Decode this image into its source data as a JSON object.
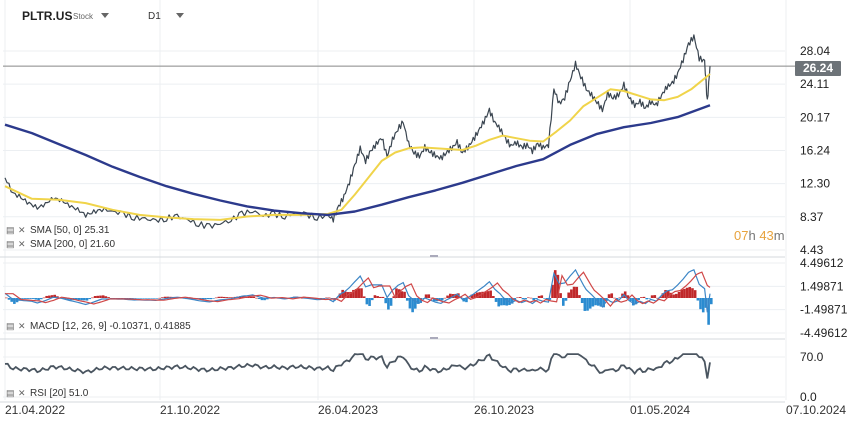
{
  "header": {
    "symbol": "PLTR.US",
    "symbol_type": "Stock",
    "timeframe": "D1"
  },
  "price_tag": "26.24",
  "countdown": {
    "hours": "07",
    "h_unit": "h",
    "minutes": "43",
    "m_unit": "m"
  },
  "indicators": {
    "sma50": "SMA [50, 0] 25.31",
    "sma200": "SMA [200, 0] 21.60",
    "macd": "MACD [12, 26, 9] -0.10371, 0.41885",
    "rsi": "RSI [20] 51.0"
  },
  "colors": {
    "price": "#3a4550",
    "sma50": "#f0d44a",
    "sma200": "#2c3a8c",
    "macd_pos": "#c0282a",
    "macd_neg": "#2a8bd0",
    "macd_line": "#3d86c6",
    "signal_line": "#d04848",
    "rsi": "#4a5560",
    "grid": "#eceff2",
    "price_tag_bg": "#6d7378",
    "countdown": "#e8a33d"
  },
  "chart_data": {
    "type": "line",
    "x_labels": [
      "21.04.2022",
      "21.10.2022",
      "26.04.2023",
      "26.10.2023",
      "01.05.2024",
      "07.10.2024"
    ],
    "price_axis_ticks": [
      "28.04",
      "24.11",
      "20.17",
      "16.24",
      "12.30",
      "8.37",
      "4.43"
    ],
    "price_ylim": [
      4.43,
      30.0
    ],
    "current_price": 26.24,
    "series": [
      {
        "name": "PLTR.US",
        "points": [
          [
            0,
            13.0
          ],
          [
            3,
            11.2
          ],
          [
            6,
            10.6
          ],
          [
            9,
            10.0
          ],
          [
            12,
            9.4
          ],
          [
            15,
            9.9
          ],
          [
            18,
            10.6
          ],
          [
            21,
            10.3
          ],
          [
            24,
            9.7
          ],
          [
            27,
            9.2
          ],
          [
            30,
            8.6
          ],
          [
            33,
            8.9
          ],
          [
            36,
            9.3
          ],
          [
            40,
            9.0
          ],
          [
            44,
            8.7
          ],
          [
            48,
            8.3
          ],
          [
            52,
            8.1
          ],
          [
            56,
            7.9
          ],
          [
            60,
            8.2
          ],
          [
            64,
            8.4
          ],
          [
            68,
            8.0
          ],
          [
            72,
            7.5
          ],
          [
            76,
            7.2
          ],
          [
            80,
            7.6
          ],
          [
            84,
            8.0
          ],
          [
            88,
            8.7
          ],
          [
            92,
            9.1
          ],
          [
            96,
            8.5
          ],
          [
            100,
            8.7
          ],
          [
            104,
            8.4
          ],
          [
            108,
            8.8
          ],
          [
            112,
            8.6
          ],
          [
            116,
            8.3
          ],
          [
            120,
            8.5
          ],
          [
            122,
            8.1
          ],
          [
            124,
            9.6
          ],
          [
            126,
            10.8
          ],
          [
            128,
            12.5
          ],
          [
            130,
            14.5
          ],
          [
            132,
            16.5
          ],
          [
            134,
            15.0
          ],
          [
            136,
            16.2
          ],
          [
            138,
            17.0
          ],
          [
            140,
            17.8
          ],
          [
            142,
            15.5
          ],
          [
            144,
            17.5
          ],
          [
            146,
            18.8
          ],
          [
            148,
            19.6
          ],
          [
            150,
            17.0
          ],
          [
            152,
            16.0
          ],
          [
            154,
            15.5
          ],
          [
            156,
            16.6
          ],
          [
            158,
            16.1
          ],
          [
            160,
            15.6
          ],
          [
            162,
            15.3
          ],
          [
            164,
            16.0
          ],
          [
            166,
            16.5
          ],
          [
            168,
            17.2
          ],
          [
            170,
            16.0
          ],
          [
            172,
            16.6
          ],
          [
            174,
            17.5
          ],
          [
            176,
            18.6
          ],
          [
            178,
            19.7
          ],
          [
            180,
            21.0
          ],
          [
            182,
            19.6
          ],
          [
            184,
            18.8
          ],
          [
            186,
            17.6
          ],
          [
            188,
            16.8
          ],
          [
            190,
            17.2
          ],
          [
            192,
            16.6
          ],
          [
            194,
            16.9
          ],
          [
            196,
            16.2
          ],
          [
            198,
            17.0
          ],
          [
            200,
            16.6
          ],
          [
            202,
            16.9
          ],
          [
            204,
            23.5
          ],
          [
            206,
            21.8
          ],
          [
            208,
            22.5
          ],
          [
            210,
            24.5
          ],
          [
            212,
            26.5
          ],
          [
            214,
            25.0
          ],
          [
            216,
            23.5
          ],
          [
            218,
            22.8
          ],
          [
            220,
            22.0
          ],
          [
            222,
            21.0
          ],
          [
            224,
            23.0
          ],
          [
            226,
            22.5
          ],
          [
            228,
            22.8
          ],
          [
            230,
            24.0
          ],
          [
            232,
            22.5
          ],
          [
            234,
            21.6
          ],
          [
            236,
            22.0
          ],
          [
            238,
            21.3
          ],
          [
            240,
            22.0
          ],
          [
            242,
            21.6
          ],
          [
            244,
            22.8
          ],
          [
            246,
            23.8
          ],
          [
            248,
            24.2
          ],
          [
            250,
            25.4
          ],
          [
            252,
            27.0
          ],
          [
            254,
            28.8
          ],
          [
            256,
            29.8
          ],
          [
            258,
            27.2
          ],
          [
            260,
            26.8
          ],
          [
            261,
            22.0
          ],
          [
            262,
            26.24
          ]
        ]
      },
      {
        "name": "SMA [50, 0]",
        "points": [
          [
            0,
            12.0
          ],
          [
            10,
            10.5
          ],
          [
            20,
            10.4
          ],
          [
            30,
            10.0
          ],
          [
            40,
            9.2
          ],
          [
            50,
            8.6
          ],
          [
            60,
            8.3
          ],
          [
            70,
            8.1
          ],
          [
            80,
            8.0
          ],
          [
            90,
            8.4
          ],
          [
            100,
            8.6
          ],
          [
            110,
            8.6
          ],
          [
            120,
            8.7
          ],
          [
            125,
            9.2
          ],
          [
            130,
            11.0
          ],
          [
            135,
            13.0
          ],
          [
            140,
            15.0
          ],
          [
            145,
            16.0
          ],
          [
            150,
            16.5
          ],
          [
            155,
            16.6
          ],
          [
            160,
            16.5
          ],
          [
            165,
            16.4
          ],
          [
            170,
            16.3
          ],
          [
            175,
            16.8
          ],
          [
            180,
            17.5
          ],
          [
            185,
            18.0
          ],
          [
            190,
            17.7
          ],
          [
            195,
            17.4
          ],
          [
            200,
            17.3
          ],
          [
            205,
            18.5
          ],
          [
            210,
            19.8
          ],
          [
            215,
            21.5
          ],
          [
            220,
            22.5
          ],
          [
            225,
            23.5
          ],
          [
            230,
            23.3
          ],
          [
            235,
            22.8
          ],
          [
            240,
            22.3
          ],
          [
            245,
            22.2
          ],
          [
            250,
            22.6
          ],
          [
            255,
            23.5
          ],
          [
            262,
            25.31
          ]
        ]
      },
      {
        "name": "SMA [200, 0]",
        "points": [
          [
            0,
            19.3
          ],
          [
            10,
            18.3
          ],
          [
            20,
            17.0
          ],
          [
            30,
            15.7
          ],
          [
            40,
            14.3
          ],
          [
            50,
            13.1
          ],
          [
            60,
            12.0
          ],
          [
            70,
            11.1
          ],
          [
            80,
            10.3
          ],
          [
            90,
            9.6
          ],
          [
            100,
            9.1
          ],
          [
            110,
            8.8
          ],
          [
            120,
            8.6
          ],
          [
            130,
            9.0
          ],
          [
            140,
            9.8
          ],
          [
            150,
            10.7
          ],
          [
            160,
            11.5
          ],
          [
            170,
            12.4
          ],
          [
            180,
            13.4
          ],
          [
            190,
            14.4
          ],
          [
            200,
            15.2
          ],
          [
            210,
            16.9
          ],
          [
            220,
            18.2
          ],
          [
            230,
            19.0
          ],
          [
            240,
            19.5
          ],
          [
            250,
            20.2
          ],
          [
            262,
            21.6
          ]
        ]
      }
    ],
    "macd": {
      "axis_ticks": [
        "4.49612",
        "1.49871",
        "-1.49871",
        "-4.49612"
      ],
      "ylim": [
        -4.49612,
        4.49612
      ],
      "current_macd": -0.10371,
      "current_signal": 0.41885
    },
    "rsi": {
      "axis_ticks": [
        "70.0",
        "0.0"
      ],
      "ylim": [
        0,
        100
      ],
      "current": 51.0
    }
  }
}
